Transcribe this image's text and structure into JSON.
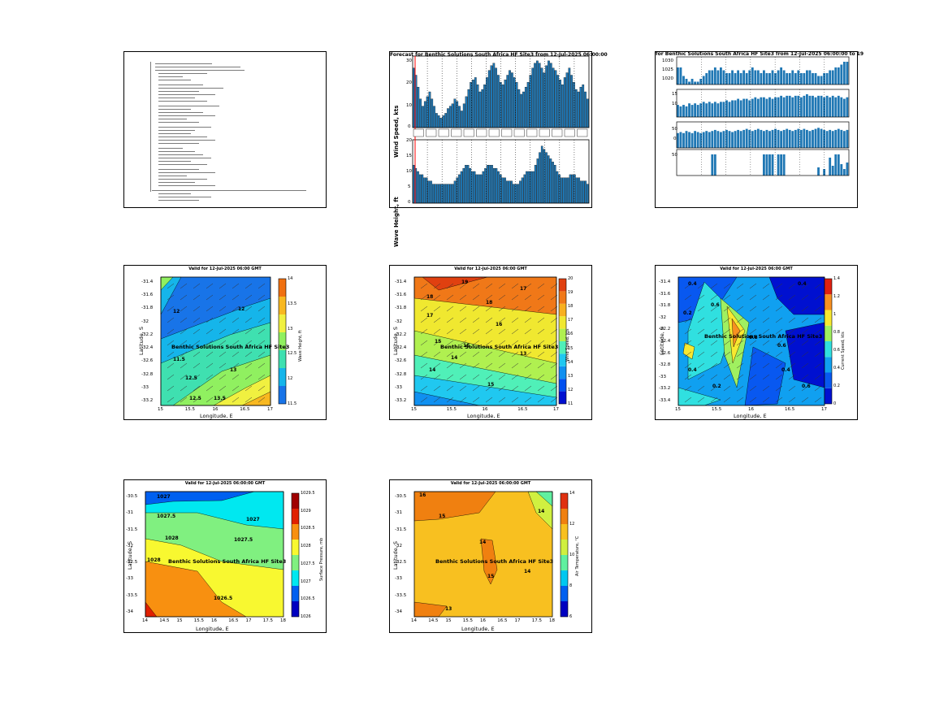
{
  "summary": {
    "lines": [
      20,
      28,
      36,
      44,
      52,
      60,
      68,
      76,
      84,
      92,
      100,
      108,
      116,
      124,
      132,
      140,
      148,
      156,
      164,
      172,
      180,
      188,
      196,
      204,
      212,
      220,
      228,
      236,
      244,
      252,
      260,
      268,
      276,
      284,
      292,
      300,
      308,
      316,
      324,
      332,
      340,
      348,
      356,
      364,
      372,
      380,
      388,
      396,
      404,
      412,
      420,
      428,
      436,
      444,
      452,
      460,
      468,
      476,
      484,
      492,
      500,
      508,
      516,
      524,
      532,
      540,
      548,
      556,
      564,
      572,
      580,
      588,
      596,
      604,
      612,
      620,
      628,
      636,
      644,
      652,
      660,
      668,
      676,
      684,
      692,
      700
    ]
  },
  "wind_wave": {
    "title": "Forecast for Benthic Solutions South Africa HF Site3 from 12-Jul-2025 06:00:00",
    "ylabel_top": "Wind Speed, kts",
    "ylabel_bottom": "Wave Height, ft",
    "yticks_top": [
      "30",
      "20",
      "10",
      "0"
    ],
    "yticks_bottom": [
      "20",
      "15",
      "10",
      "5",
      "0"
    ],
    "marker_color": "#ff0000",
    "bar_color": "#1f77b4"
  },
  "chart_data": [
    {
      "type": "bar",
      "title": "Forecast for Benthic Solutions South Africa HF Site3 from 12-Jul-2025 06:00:00",
      "ylabel": "Wind Speed, kts",
      "ylim": [
        0,
        30
      ],
      "values": [
        25,
        22,
        17,
        12,
        9,
        11,
        13,
        15,
        12,
        9,
        6,
        5,
        4,
        5,
        6,
        8,
        9,
        10,
        12,
        11,
        9,
        7,
        10,
        13,
        16,
        19,
        20,
        21,
        18,
        15,
        16,
        18,
        21,
        24,
        26,
        27,
        25,
        22,
        19,
        18,
        20,
        22,
        24,
        23,
        21,
        19,
        16,
        14,
        15,
        17,
        19,
        22,
        25,
        27,
        28,
        27,
        25,
        23,
        26,
        28,
        27,
        25,
        24,
        22,
        20,
        18,
        21,
        23,
        25,
        22,
        19,
        16,
        15,
        17,
        18,
        15,
        12
      ]
    },
    {
      "type": "bar",
      "ylabel": "Wave Height, ft",
      "ylim": [
        0,
        20
      ],
      "values": [
        12,
        11,
        10,
        9,
        9,
        8,
        8,
        7,
        7,
        6,
        6,
        6,
        6,
        6,
        6,
        6,
        6,
        6,
        6,
        7,
        8,
        9,
        10,
        11,
        12,
        12,
        11,
        10,
        10,
        9,
        9,
        9,
        10,
        11,
        12,
        12,
        12,
        11,
        11,
        10,
        9,
        8,
        8,
        7,
        7,
        7,
        6,
        6,
        6,
        7,
        8,
        9,
        10,
        10,
        10,
        10,
        12,
        14,
        16,
        18,
        17,
        16,
        15,
        14,
        13,
        12,
        10,
        9,
        8,
        8,
        8,
        8,
        9,
        9,
        9,
        8,
        8,
        7,
        7,
        7,
        6
      ]
    },
    {
      "type": "bar",
      "title": "for Benthic Solutions South Africa HF Site3 from 12-Jul-2025 06:00:00 to 19",
      "yticks": [
        "1030",
        "1025",
        "1020"
      ],
      "values": [
        6,
        6,
        3,
        2,
        1,
        2,
        1,
        1,
        2,
        3,
        4,
        5,
        5,
        6,
        5,
        6,
        5,
        4,
        4,
        5,
        4,
        5,
        4,
        5,
        4,
        5,
        6,
        5,
        5,
        4,
        5,
        4,
        4,
        5,
        4,
        5,
        6,
        5,
        4,
        4,
        5,
        4,
        5,
        4,
        4,
        5,
        5,
        4,
        4,
        3,
        3,
        4,
        4,
        5,
        5,
        6,
        6,
        7,
        8,
        8
      ]
    },
    {
      "type": "bar",
      "yticks": [
        "15",
        "10"
      ],
      "values": [
        8,
        7,
        8,
        7,
        9,
        8,
        9,
        8,
        9,
        10,
        9,
        10,
        9,
        10,
        9,
        10,
        10,
        11,
        10,
        11,
        11,
        12,
        11,
        12,
        12,
        11,
        12,
        13,
        12,
        13,
        13,
        12,
        13,
        12,
        13,
        13,
        14,
        13,
        14,
        14,
        13,
        14,
        14,
        13,
        14,
        15,
        14,
        14,
        13,
        14,
        14,
        13,
        14,
        13,
        14,
        13,
        14,
        13,
        12,
        13
      ]
    },
    {
      "type": "bar",
      "yticks": [
        "50",
        "0"
      ],
      "values": [
        14,
        15,
        14,
        16,
        15,
        14,
        16,
        15,
        14,
        15,
        16,
        15,
        16,
        17,
        16,
        15,
        16,
        17,
        16,
        15,
        16,
        17,
        16,
        17,
        18,
        17,
        16,
        17,
        18,
        17,
        16,
        17,
        16,
        17,
        18,
        17,
        16,
        17,
        18,
        17,
        16,
        17,
        18,
        17,
        18,
        17,
        16,
        17,
        18,
        19,
        18,
        17,
        16,
        17,
        16,
        17,
        18,
        17,
        16,
        17
      ]
    },
    {
      "type": "bar",
      "yticks": [
        "50"
      ],
      "values": [
        0,
        0,
        0,
        0,
        0,
        0,
        0,
        0,
        0,
        0,
        0,
        0,
        26,
        26,
        0,
        0,
        0,
        0,
        0,
        0,
        0,
        0,
        0,
        0,
        0,
        0,
        0,
        0,
        0,
        0,
        26,
        26,
        26,
        26,
        0,
        26,
        26,
        26,
        0,
        0,
        0,
        0,
        0,
        0,
        0,
        0,
        0,
        0,
        0,
        10,
        0,
        8,
        0,
        22,
        12,
        26,
        26,
        14,
        8,
        16
      ]
    }
  ],
  "maps": [
    {
      "title": "Valid for 12-Jul-2025 06:00 GMT",
      "site_label": "Benthic Solutions South Africa HF Site3",
      "xlabel": "Longitude, E",
      "ylabel": "Latitude, S",
      "xticks": [
        "15",
        "15.5",
        "16",
        "16.5",
        "17"
      ],
      "yticks": [
        "-31.4",
        "-31.6",
        "-31.8",
        "-32",
        "-32.2",
        "-32.4",
        "-32.6",
        "-32.8",
        "-33",
        "-33.2"
      ],
      "cbar_label": "Wave Height, ft",
      "cbar_ticks": [
        "14",
        "13.5",
        "13",
        "12.5",
        "12",
        "11.5"
      ],
      "colors": [
        "#1874e8",
        "#15b5ea",
        "#3fe0b0",
        "#90f060",
        "#f0f040",
        "#f8b820",
        "#f07010"
      ],
      "contour_labels": [
        "12",
        "11.5",
        "12.5",
        "13",
        "13.5",
        "12",
        "12.5"
      ]
    },
    {
      "title": "Valid for 12-Jul-2025 06:00 GMT",
      "site_label": "Benthic Solutions South Africa HF Site3",
      "xlabel": "Longitude, E",
      "ylabel": "Latitude, S",
      "xticks": [
        "15",
        "15.5",
        "16",
        "16.5",
        "17"
      ],
      "yticks": [
        "-31.4",
        "-31.6",
        "-31.8",
        "-32",
        "-32.2",
        "-32.4",
        "-32.6",
        "-32.8",
        "-33",
        "-33.2"
      ],
      "cbar_label": "Wind Speed, kts",
      "cbar_ticks": [
        "20",
        "19",
        "18",
        "17",
        "16",
        "15",
        "14",
        "13",
        "12",
        "11"
      ],
      "colors": [
        "#0010d0",
        "#0050f0",
        "#1090f0",
        "#20c8f0",
        "#50f0b8",
        "#b0f050",
        "#f0e830",
        "#f8b020",
        "#f07818",
        "#e04010"
      ],
      "contour_labels": [
        "19",
        "18",
        "17",
        "16",
        "15",
        "14",
        "13",
        "18",
        "17",
        "16",
        "14",
        "15"
      ]
    },
    {
      "title": "Valid for 12-Jul-2025 06:00 GMT",
      "site_label": "Benthic Solutions South Africa HF Site3",
      "xlabel": "Longitude, E",
      "ylabel": "Latitude, S",
      "xticks": [
        "15",
        "15.5",
        "16",
        "16.5",
        "17"
      ],
      "yticks": [
        "-31.4",
        "-31.6",
        "-31.8",
        "-32",
        "-32.2",
        "-32.4",
        "-32.6",
        "-32.8",
        "-33",
        "-33.2",
        "-33.4"
      ],
      "cbar_label": "Current Speed, kts",
      "cbar_ticks": [
        "1.4",
        "1.2",
        "1",
        "0.8",
        "0.6",
        "0.4",
        "0.2",
        "0"
      ],
      "colors": [
        "#0010d0",
        "#0858f0",
        "#10a0f0",
        "#30e0e0",
        "#a0f060",
        "#f8e830",
        "#f89020",
        "#e02010"
      ],
      "contour_labels": [
        "0.4",
        "0.6",
        "0.2",
        "0.8",
        "0.6",
        "0.4",
        "0.6",
        "0.4",
        "0.2",
        "0.4"
      ]
    },
    {
      "title": "Valid for 12-Jul-2025 06:00:00 GMT",
      "site_label": "Benthic Solutions South Africa HF Site3",
      "xlabel": "Longitude, E",
      "ylabel": "Latitude, S",
      "xticks": [
        "14",
        "14.5",
        "15",
        "15.5",
        "16",
        "16.5",
        "17",
        "17.5",
        "18"
      ],
      "yticks": [
        "-30.5",
        "-31",
        "-31.5",
        "-32",
        "-32.5",
        "-33",
        "-33.5",
        "-34"
      ],
      "cbar_label": "Surface Pressure, mb",
      "cbar_ticks": [
        "1029.5",
        "1029",
        "1028.5",
        "1028",
        "1027.5",
        "1027",
        "1026.5",
        "1026"
      ],
      "colors": [
        "#0000c0",
        "#0060f0",
        "#00e8f0",
        "#80f080",
        "#f8f830",
        "#f89010",
        "#e02000",
        "#a00000"
      ],
      "contour_labels": [
        "1027",
        "1027.5",
        "1028",
        "1028",
        "1026.5",
        "1027",
        "1027.5"
      ]
    },
    {
      "title": "Valid for 12-Jul-2025 06:00:00 GMT",
      "site_label": "Benthic Solutions South Africa HF Site3",
      "xlabel": "Longitude, E",
      "ylabel": "Latitude, S",
      "xticks": [
        "14",
        "14.5",
        "15",
        "15.5",
        "16",
        "16.5",
        "17",
        "17.5",
        "18"
      ],
      "yticks": [
        "-30.5",
        "-31",
        "-31.5",
        "-32",
        "-32.5",
        "-33",
        "-33.5",
        "-34"
      ],
      "cbar_label": "Air Temperature, °C",
      "cbar_ticks": [
        "14",
        "12",
        "10",
        "8",
        "6"
      ],
      "colors": [
        "#0000c0",
        "#0060f0",
        "#00c8f0",
        "#60f0a0",
        "#d0f040",
        "#f8c020",
        "#f08010",
        "#e03010"
      ],
      "contour_labels": [
        "16",
        "15",
        "14",
        "15",
        "14",
        "14",
        "13"
      ]
    }
  ]
}
